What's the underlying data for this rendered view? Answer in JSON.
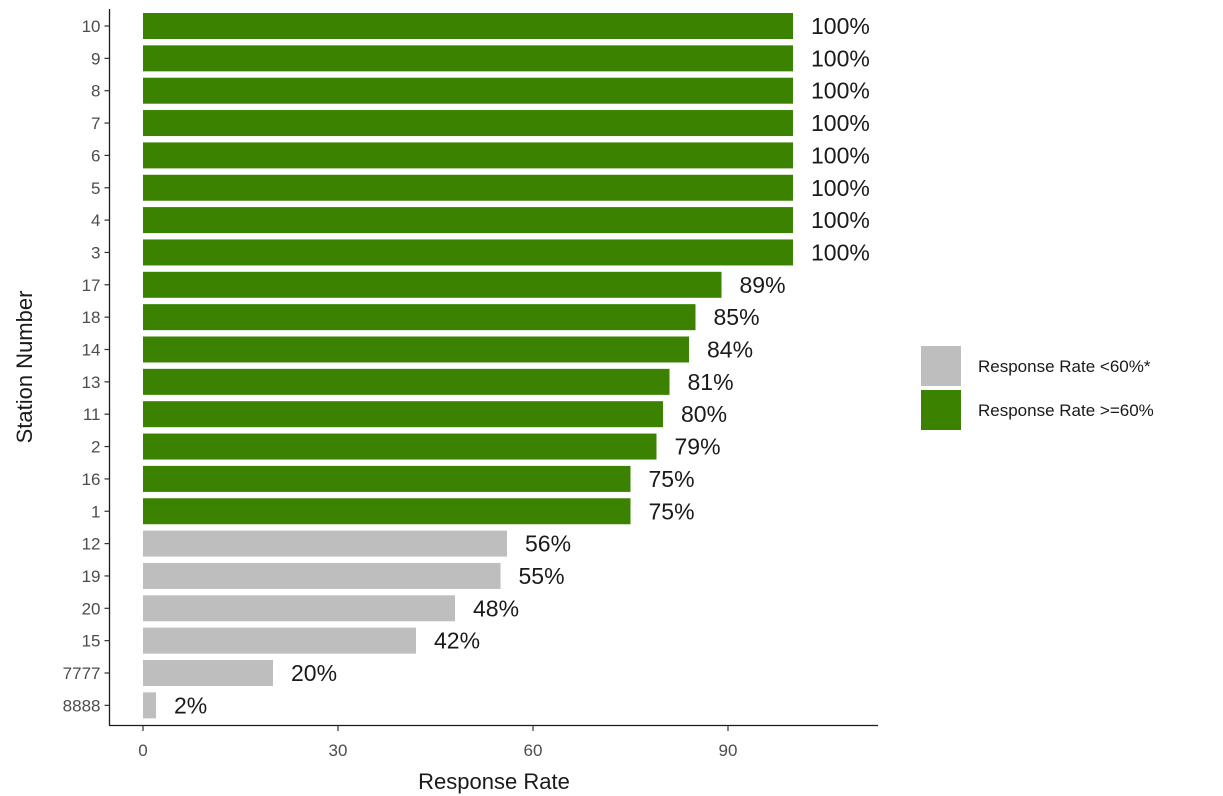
{
  "chart_data": {
    "type": "bar",
    "orientation": "horizontal",
    "categories": [
      "10",
      "9",
      "8",
      "7",
      "6",
      "5",
      "4",
      "3",
      "17",
      "18",
      "14",
      "13",
      "11",
      "2",
      "16",
      "1",
      "12",
      "19",
      "20",
      "15",
      "7777",
      "8888"
    ],
    "values": [
      100,
      100,
      100,
      100,
      100,
      100,
      100,
      100,
      89,
      85,
      84,
      81,
      80,
      79,
      75,
      75,
      56,
      55,
      48,
      42,
      20,
      2
    ],
    "data_labels": [
      "100%",
      "100%",
      "100%",
      "100%",
      "100%",
      "100%",
      "100%",
      "100%",
      "89%",
      "85%",
      "84%",
      "81%",
      "80%",
      "79%",
      "75%",
      "75%",
      "56%",
      "55%",
      "48%",
      "42%",
      "20%",
      "2%"
    ],
    "groups": [
      "high",
      "high",
      "high",
      "high",
      "high",
      "high",
      "high",
      "high",
      "high",
      "high",
      "high",
      "high",
      "high",
      "high",
      "high",
      "high",
      "low",
      "low",
      "low",
      "low",
      "low",
      "low"
    ],
    "xlabel": "Response Rate",
    "ylabel": "Station Number",
    "xlim": [
      -5,
      113
    ],
    "xticks": [
      0,
      30,
      60,
      90
    ],
    "grid": false,
    "legend": {
      "position": "right",
      "entries": [
        {
          "key": "low",
          "label": "Response Rate <60%*",
          "color": "#bebebe"
        },
        {
          "key": "high",
          "label": "Response Rate >=60%",
          "color": "#3a8200"
        }
      ]
    }
  }
}
